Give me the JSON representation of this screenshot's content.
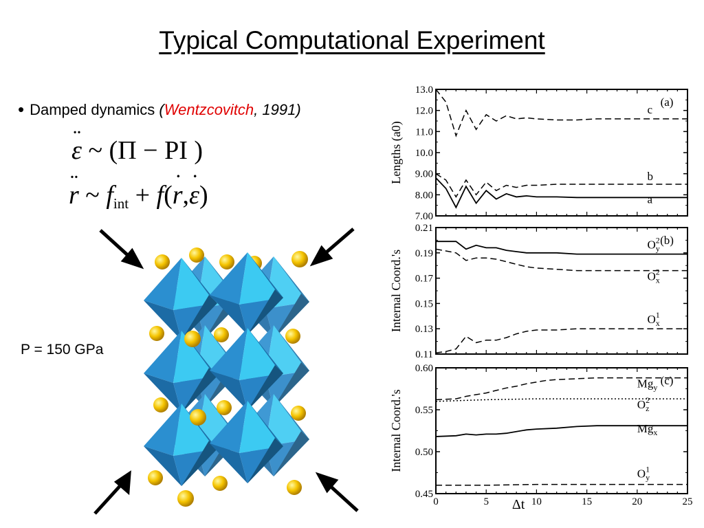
{
  "slide": {
    "title": "Typical Computational Experiment",
    "bullet": {
      "text": "Damped dynamics",
      "paren_open": "(",
      "author": "Wentzcovitch",
      "year_suffix": ", 1991)"
    },
    "equation1": {
      "lhs": "ε",
      "tilde": "~",
      "rhs": "(Π − PI )"
    },
    "equation2": {
      "lhs": "r",
      "tilde": "~",
      "f": "f",
      "sub": "int",
      "plus": "+",
      "f2": "f",
      "args_open": "(",
      "r": "r",
      "comma": ",",
      "eps": "ε",
      "args_close": ")"
    },
    "pressure_label": "P = 150 GPa",
    "colors": {
      "author": "#e00000",
      "octahedron_light": "#35c6f0",
      "octahedron_dark": "#1a6fa3",
      "atom": "#f5c400"
    },
    "illustration": {
      "icons": [
        "compression-arrow-icon",
        "octahedron-icon",
        "atom-icon"
      ]
    }
  },
  "chart_data": [
    {
      "type": "line",
      "panel": "(a)",
      "ylabel": "Lengths (a0)",
      "ylim": [
        7.0,
        13.0
      ],
      "yticks": [
        "7.00",
        "8.00",
        "9.00",
        "10.0",
        "11.0",
        "12.0",
        "13.0"
      ],
      "xlim": [
        0,
        25
      ],
      "series": [
        {
          "name": "c",
          "style": "dashed",
          "x": [
            0,
            1,
            2,
            3,
            4,
            5,
            6,
            7,
            8,
            9,
            10,
            12,
            14,
            16,
            18,
            20,
            22,
            25
          ],
          "y": [
            13.0,
            12.4,
            10.8,
            12.0,
            11.1,
            11.8,
            11.5,
            11.75,
            11.6,
            11.65,
            11.6,
            11.55,
            11.55,
            11.6,
            11.6,
            11.6,
            11.6,
            11.6
          ]
        },
        {
          "name": "b",
          "style": "dashed",
          "x": [
            0,
            1,
            2,
            3,
            4,
            5,
            6,
            7,
            8,
            9,
            10,
            12,
            14,
            16,
            18,
            20,
            22,
            25
          ],
          "y": [
            9.0,
            8.7,
            7.9,
            8.7,
            8.0,
            8.6,
            8.2,
            8.45,
            8.35,
            8.45,
            8.45,
            8.5,
            8.5,
            8.5,
            8.5,
            8.5,
            8.5,
            8.5
          ]
        },
        {
          "name": "a",
          "style": "solid",
          "x": [
            0,
            1,
            2,
            3,
            4,
            5,
            6,
            7,
            8,
            9,
            10,
            12,
            14,
            16,
            18,
            20,
            22,
            25
          ],
          "y": [
            8.8,
            8.3,
            7.4,
            8.4,
            7.6,
            8.2,
            7.8,
            8.05,
            7.9,
            7.95,
            7.9,
            7.9,
            7.87,
            7.87,
            7.87,
            7.87,
            7.87,
            7.87
          ]
        }
      ]
    },
    {
      "type": "line",
      "panel": "(b)",
      "ylabel": "Internal Coord.'s",
      "ylim": [
        0.11,
        0.21
      ],
      "yticks": [
        "0.11",
        "0.13",
        "0.15",
        "0.17",
        "0.19",
        "0.21"
      ],
      "xlim": [
        0,
        25
      ],
      "series": [
        {
          "name": "O",
          "sub": "y",
          "sup": "2",
          "style": "solid",
          "x": [
            0,
            2,
            3,
            4,
            5,
            6,
            7,
            8,
            9,
            10,
            12,
            14,
            16,
            18,
            20,
            22,
            25
          ],
          "y": [
            0.199,
            0.199,
            0.193,
            0.196,
            0.194,
            0.194,
            0.192,
            0.191,
            0.19,
            0.19,
            0.19,
            0.189,
            0.189,
            0.189,
            0.189,
            0.189,
            0.189
          ]
        },
        {
          "name": "O",
          "sub": "x",
          "sup": "2",
          "style": "dashed",
          "x": [
            0,
            2,
            3,
            4,
            5,
            6,
            7,
            8,
            9,
            10,
            12,
            14,
            16,
            18,
            20,
            22,
            25
          ],
          "y": [
            0.193,
            0.19,
            0.184,
            0.186,
            0.186,
            0.185,
            0.183,
            0.181,
            0.179,
            0.178,
            0.177,
            0.176,
            0.176,
            0.176,
            0.176,
            0.176,
            0.176
          ]
        },
        {
          "name": "O",
          "sub": "x",
          "sup": "1",
          "style": "dashed",
          "x": [
            0,
            1,
            2,
            3,
            4,
            5,
            6,
            7,
            8,
            9,
            10,
            12,
            14,
            16,
            18,
            20,
            22,
            25
          ],
          "y": [
            0.111,
            0.112,
            0.114,
            0.124,
            0.119,
            0.121,
            0.121,
            0.123,
            0.126,
            0.128,
            0.129,
            0.129,
            0.13,
            0.13,
            0.13,
            0.13,
            0.13,
            0.13
          ]
        }
      ]
    },
    {
      "type": "line",
      "panel": "(c)",
      "ylabel": "Internal Coord.'s",
      "ylim": [
        0.45,
        0.6
      ],
      "yticks": [
        "0.45",
        "0.50",
        "0.55",
        "0.60"
      ],
      "xlim": [
        0,
        25
      ],
      "xticks": [
        "0",
        "5",
        "10",
        "15",
        "20",
        "25"
      ],
      "xlabel": "Δt",
      "series": [
        {
          "name": "Mg",
          "sub": "y",
          "sup": "",
          "style": "dashed",
          "x": [
            0,
            2,
            3,
            4,
            5,
            6,
            7,
            8,
            9,
            10,
            11,
            12,
            14,
            16,
            18,
            20,
            22,
            25
          ],
          "y": [
            0.562,
            0.563,
            0.566,
            0.568,
            0.57,
            0.573,
            0.576,
            0.578,
            0.581,
            0.583,
            0.585,
            0.586,
            0.587,
            0.588,
            0.588,
            0.588,
            0.588,
            0.588
          ]
        },
        {
          "name": "O",
          "sub": "z",
          "sup": "2",
          "style": "dotted",
          "x": [
            0,
            5,
            10,
            15,
            20,
            25
          ],
          "y": [
            0.56,
            0.562,
            0.563,
            0.563,
            0.563,
            0.563
          ]
        },
        {
          "name": "Mg",
          "sub": "x",
          "sup": "",
          "style": "solid",
          "x": [
            0,
            2,
            3,
            4,
            5,
            6,
            7,
            8,
            9,
            10,
            12,
            14,
            16,
            18,
            20,
            22,
            25
          ],
          "y": [
            0.518,
            0.519,
            0.521,
            0.52,
            0.521,
            0.521,
            0.522,
            0.524,
            0.526,
            0.527,
            0.528,
            0.53,
            0.531,
            0.531,
            0.531,
            0.531,
            0.531
          ]
        },
        {
          "name": "O",
          "sub": "y",
          "sup": "1",
          "style": "dashed",
          "x": [
            0,
            5,
            10,
            15,
            20,
            25
          ],
          "y": [
            0.46,
            0.46,
            0.461,
            0.461,
            0.461,
            0.461
          ]
        }
      ]
    }
  ]
}
